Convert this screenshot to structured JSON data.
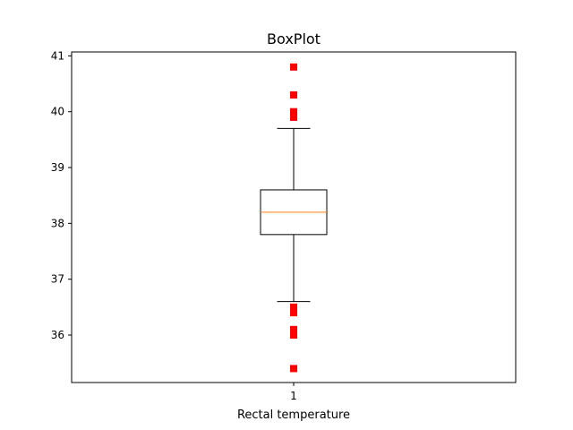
{
  "chart_data": {
    "type": "box",
    "title": "BoxPlot",
    "xlabel": "Rectal temperature",
    "ylabel": "",
    "categories": [
      "1"
    ],
    "ylim": [
      35.15,
      41.07
    ],
    "yticks": [
      36,
      37,
      38,
      39,
      40,
      41
    ],
    "grid": false,
    "boxes": [
      {
        "category": "1",
        "whisker_low": 36.6,
        "q1": 37.8,
        "median": 38.2,
        "q3": 38.6,
        "whisker_high": 39.7,
        "outliers": [
          40.8,
          40.3,
          40.0,
          39.9,
          36.5,
          36.4,
          36.1,
          36.0,
          35.4
        ]
      }
    ],
    "colors": {
      "box": "#000000",
      "median": "#ff7f0e",
      "outlier": "#ff0000"
    }
  }
}
